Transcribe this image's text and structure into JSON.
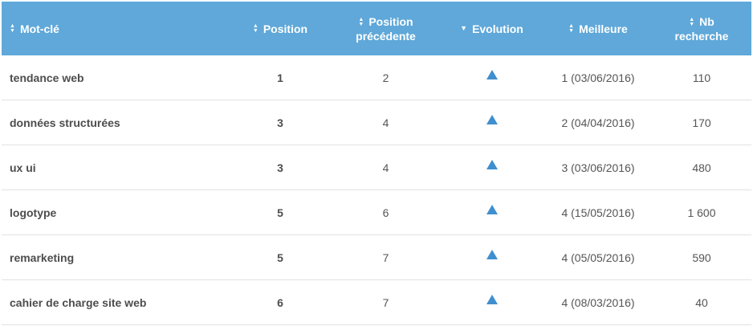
{
  "header": {
    "keyword": "Mot-clé",
    "position": "Position",
    "previous_line1": "Position",
    "previous_line2": "précédente",
    "evolution": "Evolution",
    "best": "Meilleure",
    "searches_line1": "Nb",
    "searches_line2": "recherche"
  },
  "icons": {
    "sort": "sort-arrows-icon",
    "sort_desc": "sort-desc-icon",
    "evolution": "arrow-up-icon"
  },
  "colors": {
    "header_bg": "#5fa8d9",
    "evolution_up": "#3f8fcf"
  },
  "rows": [
    {
      "keyword": "tendance web",
      "position": "1",
      "previous": "2",
      "best": "1 (03/06/2016)",
      "searches": "110"
    },
    {
      "keyword": "données structurées",
      "position": "3",
      "previous": "4",
      "best": "2 (04/04/2016)",
      "searches": "170"
    },
    {
      "keyword": "ux ui",
      "position": "3",
      "previous": "4",
      "best": "3 (03/06/2016)",
      "searches": "480"
    },
    {
      "keyword": "logotype",
      "position": "5",
      "previous": "6",
      "best": "4 (15/05/2016)",
      "searches": "1 600"
    },
    {
      "keyword": "remarketing",
      "position": "5",
      "previous": "7",
      "best": "4 (05/05/2016)",
      "searches": "590"
    },
    {
      "keyword": "cahier de charge site web",
      "position": "6",
      "previous": "7",
      "best": "4 (08/03/2016)",
      "searches": "40"
    }
  ]
}
